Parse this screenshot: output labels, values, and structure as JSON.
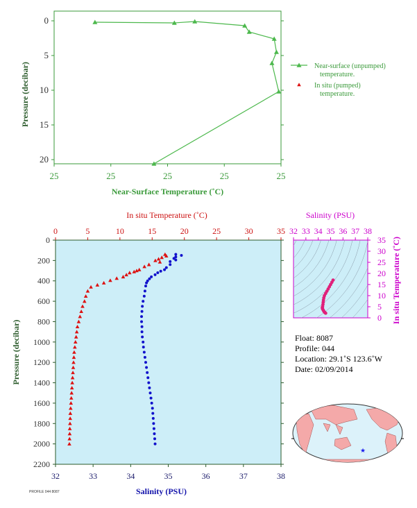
{
  "chart_data": [
    {
      "type": "line",
      "xlabel": "Near-Surface Temperature (˚C)",
      "ylabel": "Pressure (decibar)",
      "x_tick_labels": [
        "25",
        "25",
        "25",
        "25",
        "25"
      ],
      "y_ticks": [
        0,
        5,
        10,
        15,
        20
      ],
      "ylim": [
        0,
        22
      ],
      "legend": {
        "placement": "right",
        "entries": [
          "Near-surface (unpumped)",
          "temperature.",
          "In situ (pumped)",
          "temperature."
        ]
      },
      "series": [
        {
          "name": "Near-surface (unpumped) temperature.",
          "color": "#4cb84c",
          "marker": "triangle",
          "points": [
            {
              "x": 0.18,
              "y": 0.2
            },
            {
              "x": 0.53,
              "y": 0.3
            },
            {
              "x": 0.62,
              "y": 0.1
            },
            {
              "x": 0.84,
              "y": 0.7
            },
            {
              "x": 0.86,
              "y": 1.6
            },
            {
              "x": 0.97,
              "y": 2.6
            },
            {
              "x": 0.98,
              "y": 4.5
            },
            {
              "x": 0.96,
              "y": 6.1
            },
            {
              "x": 0.99,
              "y": 10.2
            },
            {
              "x": 0.44,
              "y": 20.6
            }
          ]
        }
      ]
    },
    {
      "type": "scatter",
      "title_top": "In situ Temperature (˚C)",
      "xlabel": "Salinity (PSU)",
      "ylabel": "Pressure (decibar)",
      "ylim": [
        0,
        2200
      ],
      "y_ticks": [
        0,
        200,
        400,
        600,
        800,
        1000,
        1200,
        1400,
        1600,
        1800,
        2000,
        2200
      ],
      "temperature_axis": {
        "range": [
          0,
          35
        ],
        "ticks": [
          0,
          5,
          10,
          15,
          20,
          25,
          30,
          35
        ]
      },
      "salinity_axis": {
        "range": [
          32,
          38
        ],
        "ticks": [
          32,
          33,
          34,
          35,
          36,
          37,
          38
        ]
      },
      "series": [
        {
          "name": "Temperature",
          "color": "#dd1111",
          "marker": "triangle",
          "points": [
            {
              "x": 17.0,
              "y": 140
            },
            {
              "x": 17.2,
              "y": 155
            },
            {
              "x": 16.5,
              "y": 170
            },
            {
              "x": 16.0,
              "y": 185
            },
            {
              "x": 15.5,
              "y": 200
            },
            {
              "x": 16.2,
              "y": 215
            },
            {
              "x": 14.5,
              "y": 240
            },
            {
              "x": 13.8,
              "y": 260
            },
            {
              "x": 13.0,
              "y": 290
            },
            {
              "x": 12.6,
              "y": 300
            },
            {
              "x": 12.2,
              "y": 310
            },
            {
              "x": 11.5,
              "y": 320
            },
            {
              "x": 11.0,
              "y": 340
            },
            {
              "x": 10.5,
              "y": 360
            },
            {
              "x": 9.5,
              "y": 375
            },
            {
              "x": 8.5,
              "y": 395
            },
            {
              "x": 7.5,
              "y": 420
            },
            {
              "x": 6.5,
              "y": 440
            },
            {
              "x": 5.5,
              "y": 460
            },
            {
              "x": 5.0,
              "y": 500
            },
            {
              "x": 4.7,
              "y": 550
            },
            {
              "x": 4.5,
              "y": 600
            },
            {
              "x": 4.2,
              "y": 650
            },
            {
              "x": 4.0,
              "y": 700
            },
            {
              "x": 3.8,
              "y": 750
            },
            {
              "x": 3.6,
              "y": 800
            },
            {
              "x": 3.4,
              "y": 850
            },
            {
              "x": 3.3,
              "y": 900
            },
            {
              "x": 3.2,
              "y": 950
            },
            {
              "x": 3.1,
              "y": 1000
            },
            {
              "x": 3.0,
              "y": 1050
            },
            {
              "x": 2.9,
              "y": 1100
            },
            {
              "x": 2.85,
              "y": 1150
            },
            {
              "x": 2.8,
              "y": 1200
            },
            {
              "x": 2.75,
              "y": 1250
            },
            {
              "x": 2.7,
              "y": 1300
            },
            {
              "x": 2.65,
              "y": 1350
            },
            {
              "x": 2.6,
              "y": 1400
            },
            {
              "x": 2.55,
              "y": 1450
            },
            {
              "x": 2.5,
              "y": 1500
            },
            {
              "x": 2.45,
              "y": 1550
            },
            {
              "x": 2.4,
              "y": 1600
            },
            {
              "x": 2.35,
              "y": 1650
            },
            {
              "x": 2.3,
              "y": 1700
            },
            {
              "x": 2.28,
              "y": 1750
            },
            {
              "x": 2.25,
              "y": 1800
            },
            {
              "x": 2.22,
              "y": 1850
            },
            {
              "x": 2.2,
              "y": 1900
            },
            {
              "x": 2.18,
              "y": 1950
            },
            {
              "x": 2.15,
              "y": 2000
            }
          ]
        },
        {
          "name": "Salinity",
          "color": "#1111cc",
          "marker": "dot",
          "points": [
            {
              "x": 35.2,
              "y": 140
            },
            {
              "x": 35.35,
              "y": 150
            },
            {
              "x": 35.2,
              "y": 165
            },
            {
              "x": 35.15,
              "y": 180
            },
            {
              "x": 35.2,
              "y": 195
            },
            {
              "x": 35.05,
              "y": 210
            },
            {
              "x": 35.05,
              "y": 240
            },
            {
              "x": 34.95,
              "y": 270
            },
            {
              "x": 34.9,
              "y": 290
            },
            {
              "x": 34.8,
              "y": 305
            },
            {
              "x": 34.72,
              "y": 320
            },
            {
              "x": 34.65,
              "y": 340
            },
            {
              "x": 34.55,
              "y": 360
            },
            {
              "x": 34.5,
              "y": 380
            },
            {
              "x": 34.45,
              "y": 400
            },
            {
              "x": 34.42,
              "y": 420
            },
            {
              "x": 34.4,
              "y": 450
            },
            {
              "x": 34.38,
              "y": 500
            },
            {
              "x": 34.36,
              "y": 550
            },
            {
              "x": 34.33,
              "y": 600
            },
            {
              "x": 34.31,
              "y": 650
            },
            {
              "x": 34.3,
              "y": 700
            },
            {
              "x": 34.29,
              "y": 750
            },
            {
              "x": 34.29,
              "y": 800
            },
            {
              "x": 34.3,
              "y": 850
            },
            {
              "x": 34.3,
              "y": 900
            },
            {
              "x": 34.31,
              "y": 950
            },
            {
              "x": 34.33,
              "y": 1000
            },
            {
              "x": 34.34,
              "y": 1050
            },
            {
              "x": 34.36,
              "y": 1100
            },
            {
              "x": 34.38,
              "y": 1150
            },
            {
              "x": 34.4,
              "y": 1200
            },
            {
              "x": 34.42,
              "y": 1250
            },
            {
              "x": 34.44,
              "y": 1300
            },
            {
              "x": 34.46,
              "y": 1350
            },
            {
              "x": 34.48,
              "y": 1400
            },
            {
              "x": 34.5,
              "y": 1450
            },
            {
              "x": 34.52,
              "y": 1500
            },
            {
              "x": 34.54,
              "y": 1550
            },
            {
              "x": 34.56,
              "y": 1600
            },
            {
              "x": 34.58,
              "y": 1650
            },
            {
              "x": 34.59,
              "y": 1700
            },
            {
              "x": 34.6,
              "y": 1750
            },
            {
              "x": 34.61,
              "y": 1800
            },
            {
              "x": 34.62,
              "y": 1850
            },
            {
              "x": 34.63,
              "y": 1900
            },
            {
              "x": 34.64,
              "y": 1950
            },
            {
              "x": 34.65,
              "y": 2000
            }
          ]
        }
      ]
    },
    {
      "type": "scatter",
      "title_top": "Salinity (PSU)",
      "ylabel": "In situ Temperature (˚C)",
      "xlim": [
        32,
        38
      ],
      "ylim": [
        0,
        35
      ],
      "x_ticks": [
        32,
        33,
        34,
        35,
        36,
        37,
        38
      ],
      "y_ticks": [
        0,
        5,
        10,
        15,
        20,
        25,
        30,
        35
      ],
      "series": [
        {
          "name": "T-S",
          "color": "#e0207a",
          "points": [
            {
              "x": 35.2,
              "y": 17.0
            },
            {
              "x": 35.1,
              "y": 16.0
            },
            {
              "x": 35.0,
              "y": 15.0
            },
            {
              "x": 34.9,
              "y": 14.0
            },
            {
              "x": 34.8,
              "y": 13.0
            },
            {
              "x": 34.7,
              "y": 12.0
            },
            {
              "x": 34.6,
              "y": 11.0
            },
            {
              "x": 34.5,
              "y": 10.0
            },
            {
              "x": 34.45,
              "y": 9.0
            },
            {
              "x": 34.42,
              "y": 8.0
            },
            {
              "x": 34.4,
              "y": 7.0
            },
            {
              "x": 34.38,
              "y": 6.0
            },
            {
              "x": 34.35,
              "y": 5.0
            },
            {
              "x": 34.33,
              "y": 4.5
            },
            {
              "x": 34.35,
              "y": 4.0
            },
            {
              "x": 34.4,
              "y": 3.5
            },
            {
              "x": 34.45,
              "y": 3.0
            },
            {
              "x": 34.5,
              "y": 2.6
            },
            {
              "x": 34.55,
              "y": 2.3
            },
            {
              "x": 34.6,
              "y": 2.1
            }
          ]
        }
      ]
    }
  ],
  "info": {
    "float": "Float:  8087",
    "profile": "Profile:  044",
    "location": "Location:  29.1˚S  123.6˚W",
    "date": "Date:  02/09/2014"
  },
  "footer_stamp": "PROFILE 044 8087",
  "colors": {
    "near_surface_axis": "#3a9a3a",
    "temperature_axis": "#cc1111",
    "salinity_axis": "#1111aa",
    "ts_axis": "#cc00cc",
    "plot_bg": "#cdeef8",
    "map_land": "#f4a9a9",
    "map_ocean": "#dcf2fa"
  }
}
